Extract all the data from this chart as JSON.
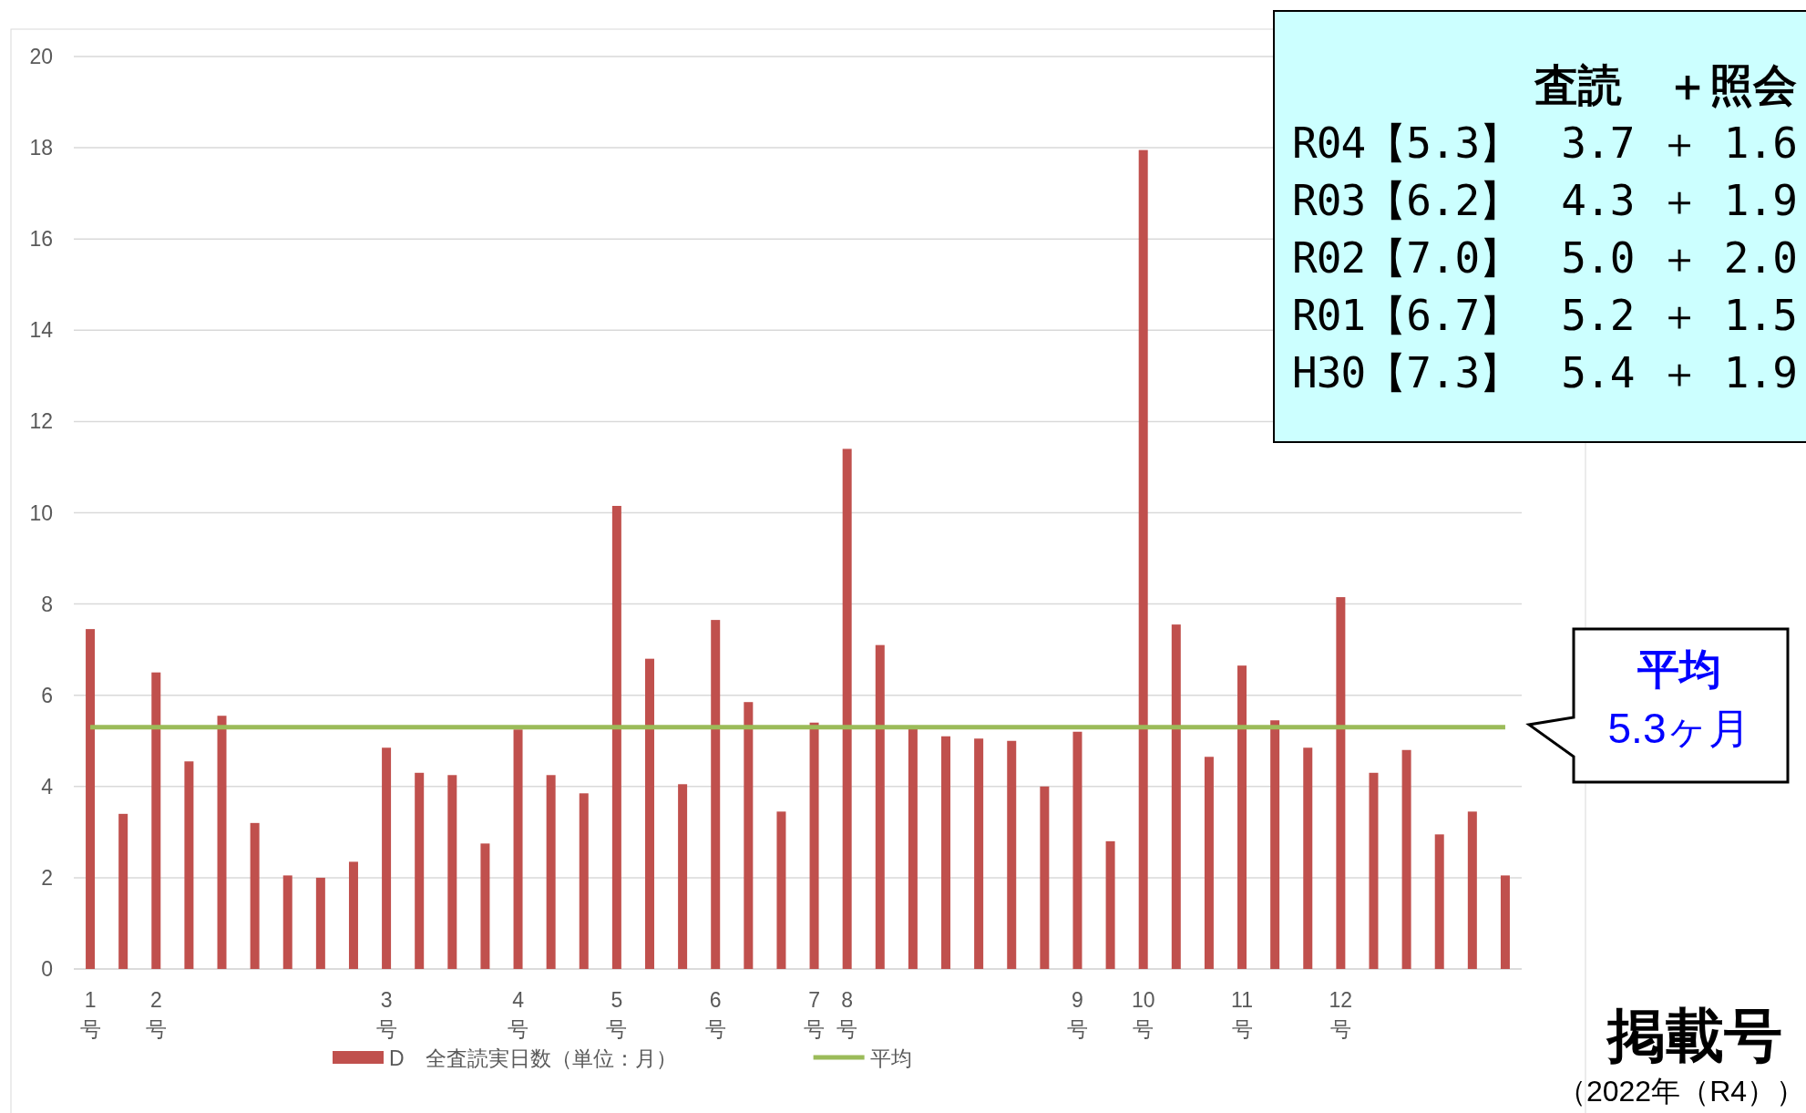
{
  "chart_data": {
    "type": "bar",
    "xlabel": "掲載号",
    "categories": [
      "1号",
      null,
      "2号",
      null,
      null,
      null,
      null,
      null,
      null,
      "3号",
      null,
      null,
      null,
      "4号",
      null,
      null,
      "5号",
      null,
      null,
      "6号",
      null,
      null,
      "7号",
      "8号",
      null,
      null,
      null,
      null,
      null,
      null,
      "9号",
      null,
      "10号",
      null,
      null,
      "11号",
      null,
      null,
      "12号",
      null,
      null,
      null,
      null,
      null
    ],
    "series": [
      {
        "name": "D　全査読実日数（単位：月）",
        "color": "#c0504d",
        "values": [
          7.45,
          3.4,
          6.5,
          4.55,
          5.55,
          3.2,
          2.05,
          2.0,
          2.35,
          4.85,
          4.3,
          4.25,
          2.75,
          5.25,
          4.25,
          3.85,
          10.15,
          6.8,
          4.05,
          7.65,
          5.85,
          3.45,
          5.4,
          11.4,
          7.1,
          5.3,
          5.1,
          5.05,
          5.0,
          4.0,
          5.2,
          2.8,
          17.95,
          7.55,
          4.65,
          6.65,
          5.45,
          4.85,
          8.15,
          4.3,
          4.8,
          2.95,
          3.45,
          2.05
        ]
      },
      {
        "name": "平均",
        "type": "line",
        "color": "#9bbb59",
        "values": [
          5.3,
          5.3,
          5.3,
          5.3,
          5.3,
          5.3,
          5.3,
          5.3,
          5.3,
          5.3,
          5.3,
          5.3,
          5.3,
          5.3,
          5.3,
          5.3,
          5.3,
          5.3,
          5.3,
          5.3,
          5.3,
          5.3,
          5.3,
          5.3,
          5.3,
          5.3,
          5.3,
          5.3,
          5.3,
          5.3,
          5.3,
          5.3,
          5.3,
          5.3,
          5.3,
          5.3,
          5.3,
          5.3,
          5.3,
          5.3,
          5.3,
          5.3,
          5.3,
          5.3
        ]
      }
    ],
    "ylim": [
      0,
      20
    ],
    "yticks": [
      0,
      2,
      4,
      6,
      8,
      10,
      12,
      14,
      16,
      18,
      20
    ],
    "grid": "y",
    "legend": "bottom",
    "marker": "none",
    "annotations": [
      "査読　＋照会",
      "R04【5.3】　3.7 ＋ 1.6",
      "R03【6.2】　4.3 ＋ 1.9",
      "R02【7.0】　5.0 ＋ 2.0",
      "R01【6.7】　5.2 ＋ 1.5",
      "H30【7.3】　5.4 ＋ 1.9",
      "平均",
      "5.3ヶ月",
      "（2022年（R4））"
    ]
  }
}
